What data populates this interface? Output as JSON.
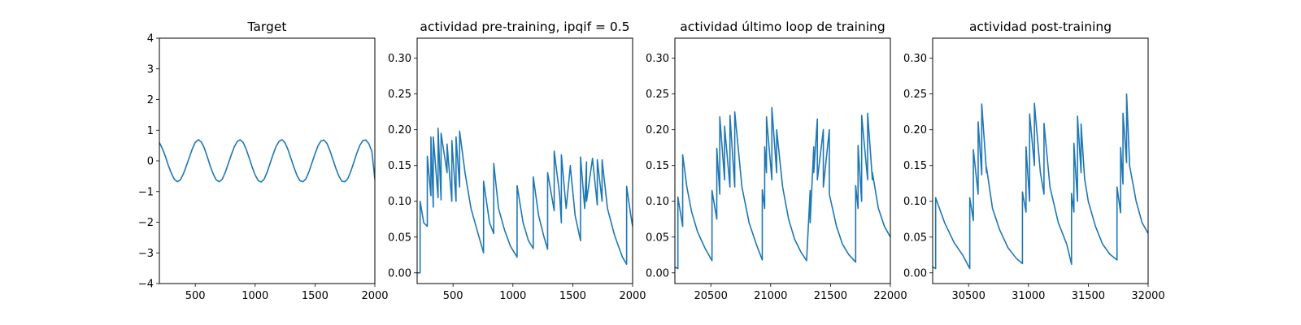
{
  "colors": {
    "series": "#1f77b4",
    "axes": "#000000",
    "background": "#ffffff"
  },
  "chart_data": [
    {
      "type": "line",
      "title": "Target",
      "xlabel": "",
      "ylabel": "",
      "xlim": [
        200,
        2000
      ],
      "ylim": [
        -4,
        4
      ],
      "xticks": [
        500,
        1000,
        1500,
        2000
      ],
      "yticks": [
        -4,
        -3,
        -2,
        -1,
        0,
        1,
        2,
        3,
        4
      ],
      "ytick_decimals": 0,
      "grid": false,
      "series": [
        {
          "x": [
            200,
            225,
            250,
            275,
            300,
            325,
            350,
            375,
            400,
            425,
            450,
            475,
            500,
            525,
            550,
            575,
            600,
            625,
            650,
            675,
            700,
            725,
            750,
            775,
            800,
            825,
            850,
            875,
            900,
            925,
            950,
            975,
            1000,
            1025,
            1050,
            1075,
            1100,
            1125,
            1150,
            1175,
            1200,
            1225,
            1250,
            1275,
            1300,
            1325,
            1350,
            1375,
            1400,
            1425,
            1450,
            1475,
            1500,
            1525,
            1550,
            1575,
            1600,
            1625,
            1650,
            1675,
            1700,
            1725,
            1750,
            1775,
            1800,
            1825,
            1850,
            1875,
            1900,
            1925,
            1950,
            1975,
            2000
          ],
          "y": [
            0.6,
            0.4,
            0.15,
            -0.15,
            -0.4,
            -0.6,
            -0.68,
            -0.62,
            -0.43,
            -0.17,
            0.11,
            0.39,
            0.6,
            0.69,
            0.62,
            0.42,
            0.14,
            -0.17,
            -0.43,
            -0.62,
            -0.68,
            -0.6,
            -0.38,
            -0.1,
            0.19,
            0.45,
            0.63,
            0.69,
            0.6,
            0.38,
            0.1,
            -0.2,
            -0.46,
            -0.64,
            -0.69,
            -0.6,
            -0.37,
            -0.08,
            0.21,
            0.47,
            0.64,
            0.69,
            0.59,
            0.36,
            0.07,
            -0.22,
            -0.48,
            -0.65,
            -0.68,
            -0.58,
            -0.35,
            -0.06,
            0.23,
            0.49,
            0.65,
            0.68,
            0.57,
            0.33,
            0.04,
            -0.25,
            -0.5,
            -0.66,
            -0.68,
            -0.57,
            -0.33,
            -0.04,
            0.26,
            0.51,
            0.66,
            0.68,
            0.56,
            0.31,
            -0.6
          ]
        }
      ]
    },
    {
      "type": "line",
      "title": "actividad pre-training, ipqif = 0.5",
      "xlabel": "",
      "ylabel": "",
      "xlim": [
        200,
        2000
      ],
      "ylim": [
        -0.015,
        0.328
      ],
      "xticks": [
        500,
        1000,
        1500,
        2000
      ],
      "yticks": [
        0.0,
        0.05,
        0.1,
        0.15,
        0.2,
        0.25,
        0.3
      ],
      "ytick_decimals": 2,
      "grid": false,
      "series": [
        {
          "x": [
            200,
            225,
            225,
            240,
            255,
            285,
            285,
            315,
            315,
            335,
            335,
            375,
            375,
            400,
            400,
            450,
            450,
            490,
            490,
            525,
            525,
            555,
            555,
            600,
            650,
            700,
            755,
            755,
            805,
            840,
            840,
            880,
            930,
            980,
            1035,
            1035,
            1085,
            1130,
            1170,
            1170,
            1215,
            1260,
            1290,
            1290,
            1345,
            1345,
            1390,
            1405,
            1405,
            1445,
            1480,
            1480,
            1520,
            1565,
            1565,
            1600,
            1615,
            1615,
            1665,
            1705,
            1705,
            1745,
            1745,
            1790,
            1850,
            1915,
            1950,
            1950,
            1985,
            2000
          ],
          "y": [
            0.0,
            0.0,
            0.1,
            0.085,
            0.07,
            0.065,
            0.163,
            0.108,
            0.19,
            0.092,
            0.19,
            0.105,
            0.202,
            0.102,
            0.195,
            0.14,
            0.18,
            0.1,
            0.185,
            0.1,
            0.19,
            0.12,
            0.198,
            0.14,
            0.09,
            0.06,
            0.028,
            0.128,
            0.07,
            0.055,
            0.153,
            0.09,
            0.06,
            0.037,
            0.022,
            0.122,
            0.07,
            0.045,
            0.034,
            0.134,
            0.08,
            0.05,
            0.033,
            0.14,
            0.087,
            0.17,
            0.11,
            0.07,
            0.165,
            0.09,
            0.15,
            0.148,
            0.08,
            0.045,
            0.162,
            0.09,
            0.155,
            0.1,
            0.16,
            0.095,
            0.158,
            0.1,
            0.158,
            0.09,
            0.052,
            0.022,
            0.012,
            0.121,
            0.08,
            0.065
          ]
        }
      ]
    },
    {
      "type": "line",
      "title": "actividad último loop de training",
      "xlabel": "",
      "ylabel": "",
      "xlim": [
        20200,
        22000
      ],
      "ylim": [
        -0.015,
        0.328
      ],
      "xticks": [
        20500,
        21000,
        21500,
        22000
      ],
      "yticks": [
        0.0,
        0.05,
        0.1,
        0.15,
        0.2,
        0.25,
        0.3
      ],
      "ytick_decimals": 2,
      "grid": false,
      "series": [
        {
          "x": [
            20200,
            20225,
            20225,
            20265,
            20265,
            20300,
            20340,
            20390,
            20450,
            20510,
            20510,
            20550,
            20550,
            20575,
            20575,
            20615,
            20615,
            20660,
            20660,
            20700,
            20700,
            20760,
            20820,
            20880,
            20930,
            20930,
            20950,
            20950,
            20965,
            20965,
            21010,
            21010,
            21050,
            21050,
            21100,
            21150,
            21200,
            21250,
            21300,
            21330,
            21330,
            21360,
            21360,
            21390,
            21390,
            21440,
            21440,
            21490,
            21490,
            21550,
            21600,
            21650,
            21710,
            21710,
            21730,
            21730,
            21760,
            21760,
            21810,
            21810,
            21850,
            21850,
            21900,
            21950,
            22000
          ],
          "y": [
            0.008,
            0.006,
            0.106,
            0.065,
            0.165,
            0.12,
            0.085,
            0.057,
            0.035,
            0.017,
            0.115,
            0.075,
            0.174,
            0.11,
            0.218,
            0.13,
            0.205,
            0.12,
            0.22,
            0.12,
            0.225,
            0.12,
            0.07,
            0.04,
            0.018,
            0.116,
            0.09,
            0.176,
            0.14,
            0.218,
            0.13,
            0.231,
            0.14,
            0.2,
            0.12,
            0.075,
            0.047,
            0.03,
            0.017,
            0.115,
            0.07,
            0.176,
            0.14,
            0.215,
            0.13,
            0.2,
            0.12,
            0.2,
            0.11,
            0.065,
            0.04,
            0.026,
            0.015,
            0.122,
            0.09,
            0.178,
            0.1,
            0.22,
            0.13,
            0.223,
            0.13,
            0.14,
            0.09,
            0.065,
            0.05
          ]
        }
      ]
    },
    {
      "type": "line",
      "title": "actividad post-training",
      "xlabel": "",
      "ylabel": "",
      "xlim": [
        30200,
        32000
      ],
      "ylim": [
        -0.015,
        0.328
      ],
      "xticks": [
        30500,
        31000,
        31500,
        32000
      ],
      "yticks": [
        0.0,
        0.05,
        0.1,
        0.15,
        0.2,
        0.25,
        0.3
      ],
      "ytick_decimals": 2,
      "grid": false,
      "series": [
        {
          "x": [
            30200,
            30225,
            30225,
            30300,
            30380,
            30450,
            30510,
            30510,
            30540,
            30540,
            30580,
            30580,
            30610,
            30610,
            30650,
            30650,
            30700,
            30760,
            30830,
            30900,
            30950,
            30950,
            30980,
            30980,
            31010,
            31010,
            31050,
            31050,
            31100,
            31130,
            31130,
            31180,
            31250,
            31320,
            31360,
            31360,
            31380,
            31380,
            31410,
            31410,
            31440,
            31440,
            31470,
            31470,
            31500,
            31560,
            31620,
            31680,
            31740,
            31740,
            31770,
            31770,
            31790,
            31790,
            31820,
            31820,
            31845,
            31845,
            31900,
            31950,
            32000
          ],
          "y": [
            0.008,
            0.006,
            0.105,
            0.07,
            0.042,
            0.025,
            0.006,
            0.105,
            0.073,
            0.172,
            0.11,
            0.211,
            0.137,
            0.236,
            0.14,
            0.147,
            0.09,
            0.06,
            0.035,
            0.02,
            0.013,
            0.113,
            0.085,
            0.176,
            0.1,
            0.222,
            0.15,
            0.237,
            0.14,
            0.11,
            0.209,
            0.12,
            0.07,
            0.04,
            0.012,
            0.111,
            0.085,
            0.181,
            0.1,
            0.219,
            0.14,
            0.208,
            0.13,
            0.131,
            0.1,
            0.065,
            0.04,
            0.026,
            0.018,
            0.12,
            0.084,
            0.175,
            0.124,
            0.223,
            0.154,
            0.25,
            0.153,
            0.15,
            0.1,
            0.07,
            0.055
          ]
        }
      ]
    }
  ]
}
